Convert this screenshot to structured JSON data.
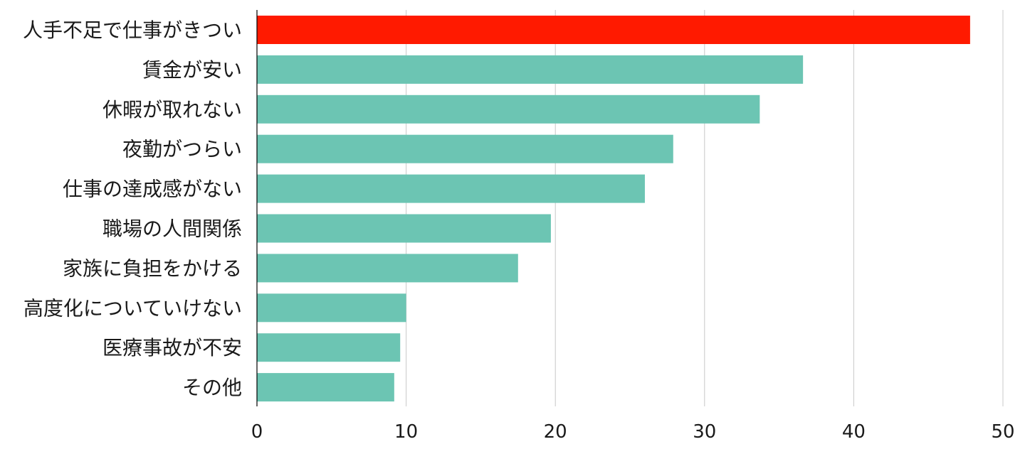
{
  "chart_data": {
    "type": "bar",
    "orientation": "horizontal",
    "title": "",
    "xlabel": "",
    "ylabel": "",
    "categories": [
      "人手不足で仕事がきつい",
      "賃金が安い",
      "休暇が取れない",
      "夜勤がつらい",
      "仕事の達成感がない",
      "職場の人間関係",
      "家族に負担をかける",
      "高度化についていけない",
      "医療事故が不安",
      "その他"
    ],
    "values": [
      47.8,
      36.6,
      33.7,
      27.9,
      26.0,
      19.7,
      17.5,
      10.0,
      9.6,
      9.2
    ],
    "colors": [
      "#ff1a00",
      "#6cc5b3",
      "#6cc5b3",
      "#6cc5b3",
      "#6cc5b3",
      "#6cc5b3",
      "#6cc5b3",
      "#6cc5b3",
      "#6cc5b3",
      "#6cc5b3"
    ],
    "highlight_color": "#ff1a00",
    "bar_color": "#6cc5b3",
    "xlim": [
      0,
      50
    ],
    "x_ticks": [
      "0",
      "10",
      "20",
      "30",
      "40",
      "50"
    ],
    "x_tick_values": [
      0,
      10,
      20,
      30,
      40,
      50
    ],
    "grid": true,
    "legend": "none"
  }
}
